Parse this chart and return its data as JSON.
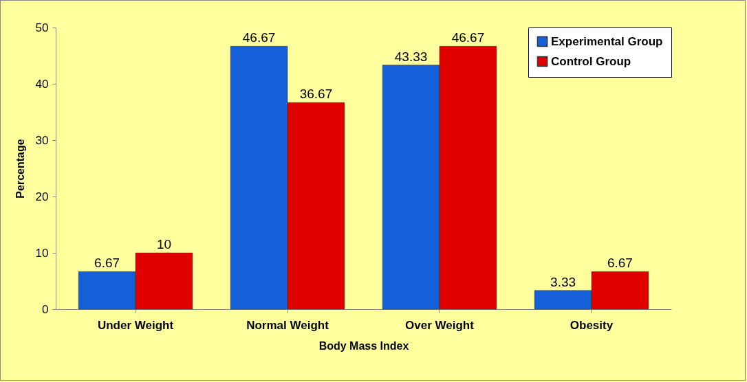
{
  "chart_data": {
    "type": "bar",
    "xlabel": "Body Mass Index",
    "ylabel": "Percentage",
    "categories": [
      "Under Weight",
      "Normal Weight",
      "Over Weight",
      "Obesity"
    ],
    "series": [
      {
        "name": "Experimental Group",
        "color": "#1560d8",
        "values": [
          6.67,
          46.67,
          43.33,
          3.33
        ]
      },
      {
        "name": "Control Group",
        "color": "#e00000",
        "values": [
          10,
          36.67,
          46.67,
          6.67
        ]
      }
    ],
    "ylim": [
      0,
      50
    ],
    "yticks": [
      0,
      10,
      20,
      30,
      40,
      50
    ],
    "data_labels": true,
    "legend": "top right"
  }
}
